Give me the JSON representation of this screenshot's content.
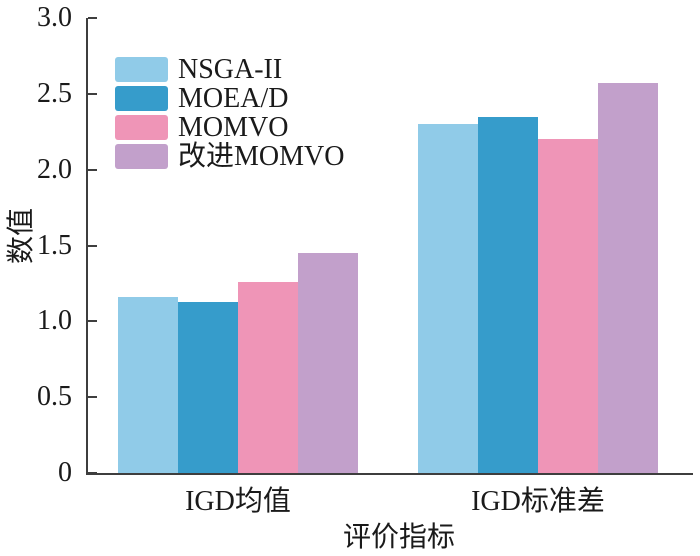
{
  "chart_data": {
    "type": "bar",
    "title": "",
    "categories": [
      "IGD均值",
      "IGD标准差"
    ],
    "series": [
      {
        "name": "NSGA-II",
        "color": "#90CBE8",
        "values": [
          1.16,
          2.3
        ]
      },
      {
        "name": "MOEA/D",
        "color": "#369CCB",
        "values": [
          1.13,
          2.35
        ]
      },
      {
        "name": "MOMVO",
        "color": "#EF95B7",
        "values": [
          1.26,
          2.2
        ]
      },
      {
        "name": "改进MOMVO",
        "color": "#C2A0CB",
        "values": [
          1.45,
          2.57
        ]
      }
    ],
    "xlabel": "评价指标",
    "ylabel": "数值",
    "ylim": [
      0,
      3.0
    ],
    "yticks": [
      0,
      0.5,
      1.0,
      1.5,
      2.0,
      2.5,
      3.0
    ],
    "ytick_labels": [
      "0",
      "0.5",
      "1.0",
      "1.5",
      "2.0",
      "2.5",
      "3.0"
    ],
    "grid": false,
    "legend_position": "upper-left-inside",
    "axis_color": "#3e3e3e",
    "text_color": "#1a1a1a"
  }
}
